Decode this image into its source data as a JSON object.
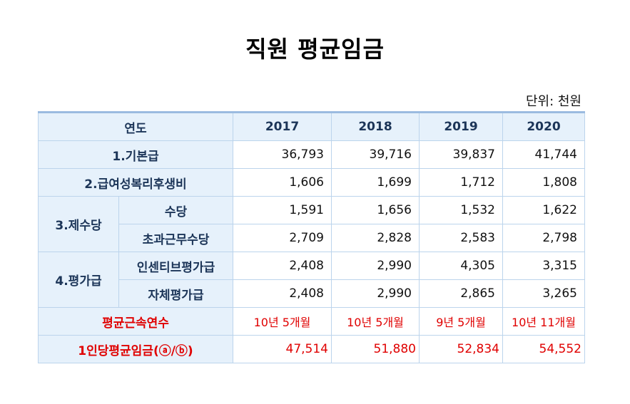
{
  "title": "직원 평균임금",
  "unit": "단위: 천원",
  "header": {
    "label": "연도",
    "years": [
      "2017",
      "2018",
      "2019",
      "2020"
    ]
  },
  "rows": {
    "basic": {
      "label": "1.기본급",
      "values": [
        "36,793",
        "39,716",
        "39,837",
        "41,744"
      ]
    },
    "benefits": {
      "label": "2.급여성복리후생비",
      "values": [
        "1,606",
        "1,699",
        "1,712",
        "1,808"
      ]
    },
    "allowances": {
      "label": "3.제수당",
      "allowance": {
        "label": "수당",
        "values": [
          "1,591",
          "1,656",
          "1,532",
          "1,622"
        ]
      },
      "overtime": {
        "label": "초과근무수당",
        "values": [
          "2,709",
          "2,828",
          "2,583",
          "2,798"
        ]
      }
    },
    "bonus": {
      "label": "4.평가급",
      "incentive": {
        "label": "인센티브평가급",
        "values": [
          "2,408",
          "2,990",
          "4,305",
          "3,315"
        ]
      },
      "self": {
        "label": "자체평가급",
        "values": [
          "2,408",
          "2,990",
          "2,865",
          "3,265"
        ]
      }
    },
    "tenure": {
      "label": "평균근속연수",
      "values": [
        "10년 5개월",
        "10년 5개월",
        "9년 5개월",
        "10년 11개월"
      ]
    },
    "per_person": {
      "label": "1인당평균임금(ⓐ/ⓑ)",
      "values": [
        "47,514",
        "51,880",
        "52,834",
        "54,552"
      ]
    }
  }
}
